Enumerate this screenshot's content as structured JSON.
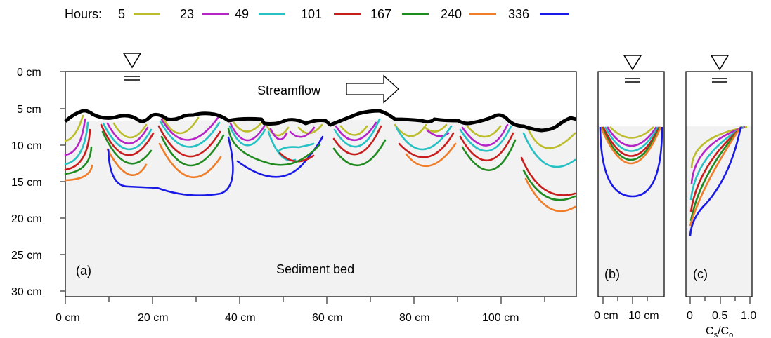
{
  "legend": {
    "title": "Hours:",
    "items": [
      {
        "label": "5",
        "color": "#bcbd2b"
      },
      {
        "label": "23",
        "color": "#b624c7"
      },
      {
        "label": "49",
        "color": "#25c1c4"
      },
      {
        "label": "101",
        "color": "#c91d1d"
      },
      {
        "label": "167",
        "color": "#1f8a1f"
      },
      {
        "label": "240",
        "color": "#f07d2a"
      },
      {
        "label": "336",
        "color": "#1a1ae6"
      }
    ]
  },
  "panel_a": {
    "label": "(a)",
    "streamflow_label": "Streamflow",
    "bed_label": "Sediment bed",
    "y_ticks": [
      "0 cm",
      "5 cm",
      "10 cm",
      "15 cm",
      "20 cm",
      "25 cm",
      "30 cm"
    ],
    "x_ticks": [
      "0 cm",
      "20 cm",
      "40 cm",
      "60 cm",
      "80 cm",
      "100 cm"
    ]
  },
  "panel_b": {
    "label": "(b)",
    "x_ticks": [
      "0 cm",
      "10 cm"
    ]
  },
  "panel_c": {
    "label": "(c)",
    "x_ticks": [
      "0",
      "0.5",
      "1.0"
    ],
    "x_label_main": "C",
    "x_label_sub1": "s",
    "x_label_sep": "/C",
    "x_label_sub2": "o"
  },
  "colors": {
    "bed_fill": "#f2f2f2",
    "bed_surface": "#000000"
  },
  "icons": [
    "water-level-icon",
    "arrow-right-icon"
  ]
}
